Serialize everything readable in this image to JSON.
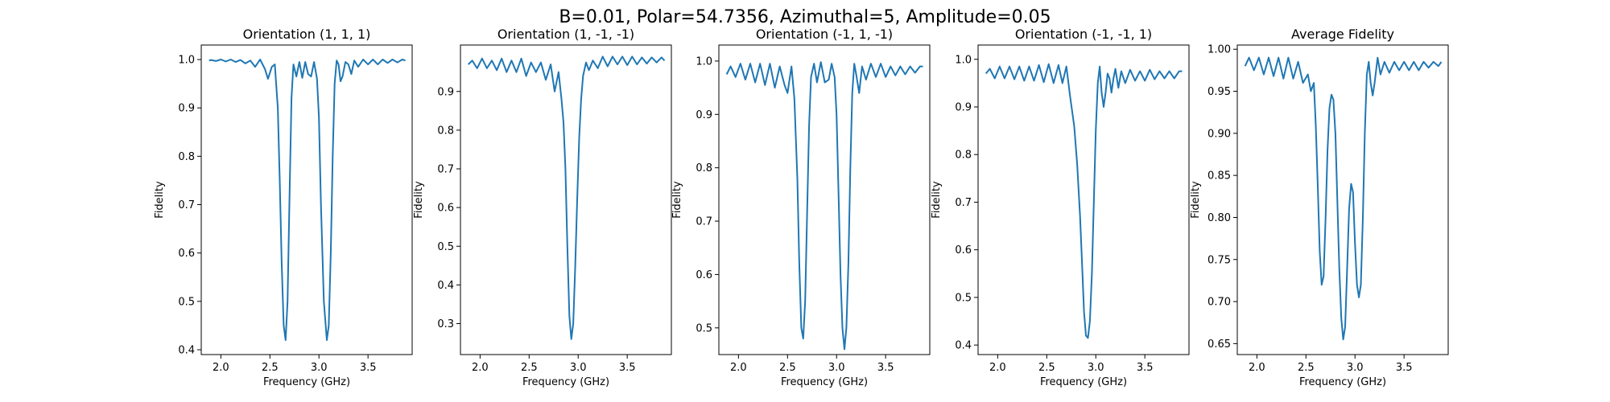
{
  "figure": {
    "suptitle": "B=0.01, Polar=54.7356, Azimuthal=5, Amplitude=0.05",
    "line_color": "#1f77b4"
  },
  "chart_data": [
    {
      "type": "line",
      "title": "Orientation (1, 1, 1)",
      "xlabel": "Frequency (GHz)",
      "ylabel": "Fidelity",
      "xlim": [
        1.8,
        3.95
      ],
      "ylim": [
        0.39,
        1.03
      ],
      "xticks": [
        2.0,
        2.5,
        3.0,
        3.5
      ],
      "yticks": [
        0.4,
        0.5,
        0.6,
        0.7,
        0.8,
        0.9,
        1.0
      ],
      "ytick_decimals": 1,
      "grid": false,
      "series": [
        {
          "x": [
            1.88,
            1.9,
            1.95,
            2.0,
            2.05,
            2.1,
            2.15,
            2.2,
            2.25,
            2.3,
            2.35,
            2.4,
            2.45,
            2.48,
            2.52,
            2.55,
            2.58,
            2.6,
            2.62,
            2.64,
            2.66,
            2.68,
            2.7,
            2.72,
            2.74,
            2.77,
            2.8,
            2.83,
            2.86,
            2.89,
            2.92,
            2.95,
            2.98,
            3.0,
            3.02,
            3.05,
            3.08,
            3.1,
            3.12,
            3.14,
            3.16,
            3.18,
            3.2,
            3.22,
            3.24,
            3.27,
            3.3,
            3.33,
            3.36,
            3.4,
            3.45,
            3.5,
            3.55,
            3.6,
            3.65,
            3.7,
            3.75,
            3.8,
            3.85,
            3.88
          ],
          "y": [
            0.998,
            0.999,
            0.997,
            1.0,
            0.996,
            1.0,
            0.995,
            0.999,
            0.992,
            0.998,
            0.985,
            1.0,
            0.98,
            0.96,
            0.985,
            0.99,
            0.9,
            0.75,
            0.58,
            0.45,
            0.42,
            0.5,
            0.72,
            0.92,
            0.99,
            0.965,
            0.995,
            0.962,
            0.995,
            0.97,
            0.965,
            0.995,
            0.96,
            0.88,
            0.7,
            0.5,
            0.42,
            0.45,
            0.6,
            0.8,
            0.95,
            0.998,
            0.99,
            0.955,
            0.965,
            0.995,
            0.99,
            0.97,
            0.998,
            0.985,
            1.0,
            0.99,
            1.0,
            0.99,
            1.0,
            0.993,
            1.0,
            0.994,
            1.0,
            0.998
          ]
        }
      ]
    },
    {
      "type": "line",
      "title": "Orientation (1, -1, -1)",
      "xlabel": "Frequency (GHz)",
      "ylabel": "Fidelity",
      "xlim": [
        1.8,
        3.95
      ],
      "ylim": [
        0.22,
        1.02
      ],
      "xticks": [
        2.0,
        2.5,
        3.0,
        3.5
      ],
      "yticks": [
        0.3,
        0.4,
        0.5,
        0.6,
        0.7,
        0.8,
        0.9
      ],
      "ytick_decimals": 1,
      "grid": false,
      "series": [
        {
          "x": [
            1.88,
            1.92,
            1.97,
            2.02,
            2.07,
            2.12,
            2.17,
            2.22,
            2.27,
            2.32,
            2.37,
            2.42,
            2.47,
            2.52,
            2.57,
            2.62,
            2.67,
            2.72,
            2.76,
            2.8,
            2.83,
            2.85,
            2.87,
            2.89,
            2.91,
            2.93,
            2.95,
            2.97,
            2.99,
            3.01,
            3.03,
            3.05,
            3.08,
            3.11,
            3.15,
            3.2,
            3.25,
            3.3,
            3.35,
            3.4,
            3.45,
            3.5,
            3.55,
            3.6,
            3.65,
            3.7,
            3.75,
            3.8,
            3.85,
            3.88
          ],
          "y": [
            0.97,
            0.98,
            0.96,
            0.985,
            0.96,
            0.98,
            0.955,
            0.985,
            0.95,
            0.98,
            0.95,
            0.985,
            0.94,
            0.975,
            0.95,
            0.975,
            0.93,
            0.97,
            0.9,
            0.95,
            0.88,
            0.82,
            0.7,
            0.5,
            0.32,
            0.26,
            0.3,
            0.45,
            0.62,
            0.78,
            0.88,
            0.94,
            0.975,
            0.955,
            0.98,
            0.96,
            0.99,
            0.965,
            0.99,
            0.97,
            0.99,
            0.968,
            0.99,
            0.97,
            0.988,
            0.972,
            0.988,
            0.975,
            0.988,
            0.98
          ]
        }
      ]
    },
    {
      "type": "line",
      "title": "Orientation (-1, 1, -1)",
      "xlabel": "Frequency (GHz)",
      "ylabel": "Fidelity",
      "xlim": [
        1.8,
        3.95
      ],
      "ylim": [
        0.45,
        1.03
      ],
      "xticks": [
        2.0,
        2.5,
        3.0,
        3.5
      ],
      "yticks": [
        0.5,
        0.6,
        0.7,
        0.8,
        0.9,
        1.0
      ],
      "ytick_decimals": 1,
      "grid": false,
      "series": [
        {
          "x": [
            1.88,
            1.92,
            1.97,
            2.02,
            2.07,
            2.12,
            2.17,
            2.22,
            2.27,
            2.32,
            2.37,
            2.42,
            2.47,
            2.5,
            2.54,
            2.57,
            2.6,
            2.62,
            2.64,
            2.66,
            2.68,
            2.7,
            2.72,
            2.74,
            2.77,
            2.8,
            2.84,
            2.88,
            2.92,
            2.95,
            2.98,
            3.0,
            3.02,
            3.04,
            3.06,
            3.08,
            3.1,
            3.12,
            3.14,
            3.16,
            3.18,
            3.2,
            3.23,
            3.26,
            3.3,
            3.35,
            3.4,
            3.45,
            3.5,
            3.55,
            3.6,
            3.65,
            3.7,
            3.75,
            3.8,
            3.85,
            3.88
          ],
          "y": [
            0.975,
            0.99,
            0.97,
            0.995,
            0.965,
            0.995,
            0.96,
            0.995,
            0.955,
            0.995,
            0.95,
            0.99,
            0.955,
            0.94,
            0.99,
            0.93,
            0.78,
            0.62,
            0.5,
            0.48,
            0.55,
            0.72,
            0.88,
            0.97,
            0.995,
            0.96,
            0.998,
            0.96,
            0.965,
            0.995,
            0.97,
            0.9,
            0.75,
            0.6,
            0.5,
            0.46,
            0.5,
            0.62,
            0.8,
            0.94,
            0.995,
            0.975,
            0.94,
            0.99,
            0.965,
            0.995,
            0.97,
            0.995,
            0.97,
            0.99,
            0.973,
            0.99,
            0.975,
            0.99,
            0.978,
            0.99,
            0.99
          ]
        }
      ]
    },
    {
      "type": "line",
      "title": "Orientation (-1, -1, 1)",
      "xlabel": "Frequency (GHz)",
      "ylabel": "Fidelity",
      "xlim": [
        1.8,
        3.95
      ],
      "ylim": [
        0.38,
        1.03
      ],
      "xticks": [
        2.0,
        2.5,
        3.0,
        3.5
      ],
      "yticks": [
        0.4,
        0.5,
        0.6,
        0.7,
        0.8,
        0.9,
        1.0
      ],
      "ytick_decimals": 1,
      "grid": false,
      "series": [
        {
          "x": [
            1.88,
            1.92,
            1.97,
            2.02,
            2.07,
            2.12,
            2.17,
            2.22,
            2.27,
            2.32,
            2.37,
            2.42,
            2.47,
            2.52,
            2.57,
            2.62,
            2.66,
            2.7,
            2.74,
            2.78,
            2.81,
            2.84,
            2.86,
            2.88,
            2.9,
            2.92,
            2.94,
            2.96,
            2.98,
            3.0,
            3.02,
            3.04,
            3.06,
            3.08,
            3.1,
            3.12,
            3.14,
            3.16,
            3.18,
            3.2,
            3.23,
            3.26,
            3.3,
            3.35,
            3.4,
            3.45,
            3.5,
            3.55,
            3.6,
            3.65,
            3.7,
            3.75,
            3.8,
            3.85,
            3.88
          ],
          "y": [
            0.97,
            0.98,
            0.96,
            0.985,
            0.96,
            0.985,
            0.958,
            0.985,
            0.955,
            0.985,
            0.955,
            0.988,
            0.952,
            0.99,
            0.95,
            0.988,
            0.95,
            0.985,
            0.92,
            0.86,
            0.78,
            0.67,
            0.57,
            0.47,
            0.42,
            0.415,
            0.45,
            0.55,
            0.7,
            0.85,
            0.95,
            0.985,
            0.93,
            0.9,
            0.93,
            0.97,
            0.96,
            0.93,
            0.96,
            0.98,
            0.94,
            0.975,
            0.95,
            0.978,
            0.955,
            0.975,
            0.955,
            0.978,
            0.958,
            0.975,
            0.96,
            0.975,
            0.96,
            0.975,
            0.975
          ]
        }
      ]
    },
    {
      "type": "line",
      "title": "Average Fidelity",
      "xlabel": "Frequency (GHz)",
      "ylabel": "Fidelity",
      "xlim": [
        1.8,
        3.95
      ],
      "ylim": [
        0.637,
        1.005
      ],
      "xticks": [
        2.0,
        2.5,
        3.0,
        3.5
      ],
      "yticks": [
        0.65,
        0.7,
        0.75,
        0.8,
        0.85,
        0.9,
        0.95,
        1.0
      ],
      "ytick_decimals": 2,
      "grid": false,
      "series": [
        {
          "x": [
            1.88,
            1.92,
            1.97,
            2.02,
            2.07,
            2.12,
            2.17,
            2.22,
            2.27,
            2.32,
            2.37,
            2.42,
            2.47,
            2.52,
            2.55,
            2.58,
            2.6,
            2.62,
            2.64,
            2.66,
            2.68,
            2.7,
            2.72,
            2.74,
            2.76,
            2.78,
            2.8,
            2.82,
            2.84,
            2.86,
            2.88,
            2.9,
            2.92,
            2.94,
            2.96,
            2.98,
            3.0,
            3.02,
            3.04,
            3.06,
            3.08,
            3.1,
            3.12,
            3.14,
            3.16,
            3.18,
            3.2,
            3.23,
            3.26,
            3.3,
            3.35,
            3.4,
            3.45,
            3.5,
            3.55,
            3.6,
            3.65,
            3.7,
            3.75,
            3.8,
            3.85,
            3.88
          ],
          "y": [
            0.98,
            0.99,
            0.975,
            0.99,
            0.97,
            0.99,
            0.968,
            0.99,
            0.965,
            0.99,
            0.965,
            0.985,
            0.96,
            0.97,
            0.95,
            0.96,
            0.91,
            0.84,
            0.76,
            0.72,
            0.73,
            0.8,
            0.88,
            0.93,
            0.946,
            0.94,
            0.9,
            0.82,
            0.74,
            0.68,
            0.655,
            0.67,
            0.74,
            0.81,
            0.84,
            0.83,
            0.77,
            0.72,
            0.705,
            0.72,
            0.8,
            0.9,
            0.97,
            0.985,
            0.96,
            0.945,
            0.96,
            0.99,
            0.97,
            0.985,
            0.972,
            0.985,
            0.975,
            0.985,
            0.975,
            0.985,
            0.975,
            0.985,
            0.978,
            0.985,
            0.98,
            0.985
          ]
        }
      ]
    }
  ]
}
